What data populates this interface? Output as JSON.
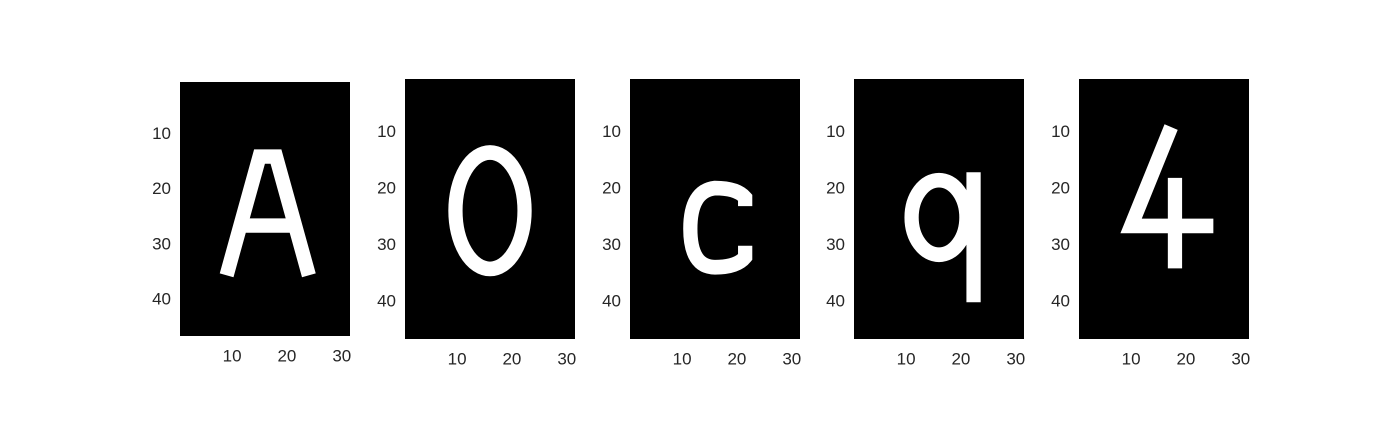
{
  "chart_data": [
    {
      "type": "image",
      "xlim": [
        0.5,
        31.5
      ],
      "ylim": [
        46.5,
        0.5
      ],
      "xticks": [
        10,
        20,
        30
      ],
      "yticks": [
        10,
        20,
        30,
        40
      ]
    },
    {
      "type": "image",
      "xlim": [
        0.5,
        31.5
      ],
      "ylim": [
        46.5,
        0.5
      ],
      "xticks": [
        10,
        20,
        30
      ],
      "yticks": [
        10,
        20,
        30,
        40
      ]
    },
    {
      "type": "image",
      "xlim": [
        0.5,
        31.5
      ],
      "ylim": [
        46.5,
        0.5
      ],
      "xticks": [
        10,
        20,
        30
      ],
      "yticks": [
        10,
        20,
        30,
        40
      ]
    },
    {
      "type": "image",
      "xlim": [
        0.5,
        31.5
      ],
      "ylim": [
        46.5,
        0.5
      ],
      "xticks": [
        10,
        20,
        30
      ],
      "yticks": [
        10,
        20,
        30,
        40
      ]
    },
    {
      "type": "image",
      "xlim": [
        0.5,
        31.5
      ],
      "ylim": [
        46.5,
        0.5
      ],
      "xticks": [
        10,
        20,
        30
      ],
      "yticks": [
        10,
        20,
        30,
        40
      ]
    }
  ]
}
